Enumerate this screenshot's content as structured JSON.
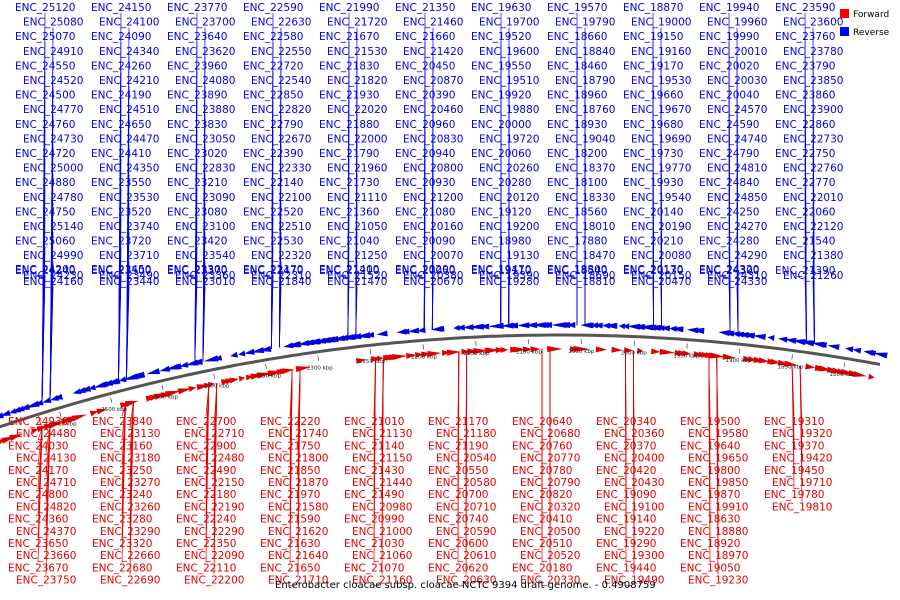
{
  "caption": "Enterobacter cloacae subsp. cloacae NCTC 9394 draft genome. - 0.4908759",
  "legend": {
    "forward": {
      "label": "Forward",
      "color": "#ff0000"
    },
    "reverse": {
      "label": "Reverse",
      "color": "#0000ff"
    }
  },
  "colors": {
    "forward": "#e00000",
    "reverse": "#0000e0",
    "backbone": "#555555"
  },
  "ticks": [
    "1800 kbp",
    "1850 kbp",
    "1900 kbp",
    "1950 kbp",
    "2000 kbp",
    "2050 kbp",
    "2100 kbp",
    "2150 kbp",
    "2200 kbp",
    "2250 kbp",
    "2300 kbp",
    "2350 kbp",
    "2400 kbp",
    "2450 kbp",
    "2500 kbp",
    "2550 kbp"
  ],
  "reverse_labels": [
    "ENC_25120",
    "ENC_25080",
    "ENC_25070",
    "ENC_24910",
    "ENC_24550",
    "ENC_24520",
    "ENC_24500",
    "ENC_24770",
    "ENC_24760",
    "ENC_24730",
    "ENC_24720",
    "ENC_25000",
    "ENC_24880",
    "ENC_24780",
    "ENC_24750",
    "ENC_25140",
    "ENC_25060",
    "ENC_24990",
    "ENC_24240",
    "ENC_24230",
    "ENC_24200",
    "ENC_24160",
    "ENC_24150",
    "ENC_24100",
    "ENC_24090",
    "ENC_24340",
    "ENC_24260",
    "ENC_24210",
    "ENC_24190",
    "ENC_24510",
    "ENC_24650",
    "ENC_24470",
    "ENC_24410",
    "ENC_24350",
    "ENC_23550",
    "ENC_23530",
    "ENC_23520",
    "ENC_23740",
    "ENC_23720",
    "ENC_23710",
    "ENC_23500",
    "ENC_23490",
    "ENC_23450",
    "ENC_23440",
    "ENC_23770",
    "ENC_23700",
    "ENC_23640",
    "ENC_23620",
    "ENC_23960",
    "ENC_24080",
    "ENC_23890",
    "ENC_23880",
    "ENC_23830",
    "ENC_23050",
    "ENC_23020",
    "ENC_22830",
    "ENC_23210",
    "ENC_23090",
    "ENC_23080",
    "ENC_23100",
    "ENC_23420",
    "ENC_23540",
    "ENC_23370",
    "ENC_23360",
    "ENC_23300",
    "ENC_23010",
    "ENC_22590",
    "ENC_22630",
    "ENC_22580",
    "ENC_22550",
    "ENC_22720",
    "ENC_22540",
    "ENC_22850",
    "ENC_22820",
    "ENC_22790",
    "ENC_22670",
    "ENC_22390",
    "ENC_22330",
    "ENC_22140",
    "ENC_22100",
    "ENC_22520",
    "ENC_22510",
    "ENC_22530",
    "ENC_22320",
    "ENC_22470",
    "ENC_22310",
    "ENC_22170",
    "ENC_21840",
    "ENC_21990",
    "ENC_21720",
    "ENC_21670",
    "ENC_21530",
    "ENC_21830",
    "ENC_21820",
    "ENC_21930",
    "ENC_22020",
    "ENC_21880",
    "ENC_22000",
    "ENC_21790",
    "ENC_21960",
    "ENC_21730",
    "ENC_21110",
    "ENC_21360",
    "ENC_21050",
    "ENC_21040",
    "ENC_21250",
    "ENC_21210",
    "ENC_21520",
    "ENC_21400",
    "ENC_21470",
    "ENC_21350",
    "ENC_21460",
    "ENC_21660",
    "ENC_21420",
    "ENC_20450",
    "ENC_20870",
    "ENC_20390",
    "ENC_20460",
    "ENC_20960",
    "ENC_20830",
    "ENC_20940",
    "ENC_20800",
    "ENC_20930",
    "ENC_21200",
    "ENC_21080",
    "ENC_20160",
    "ENC_20090",
    "ENC_20070",
    "ENC_20050",
    "ENC_20380",
    "ENC_20200",
    "ENC_20670",
    "ENC_19630",
    "ENC_19700",
    "ENC_19520",
    "ENC_19600",
    "ENC_19550",
    "ENC_19510",
    "ENC_19920",
    "ENC_19880",
    "ENC_20000",
    "ENC_19720",
    "ENC_20060",
    "ENC_20260",
    "ENC_20280",
    "ENC_20120",
    "ENC_19120",
    "ENC_19200",
    "ENC_18980",
    "ENC_19130",
    "ENC_19110",
    "ENC_19390",
    "ENC_19470",
    "ENC_19280",
    "ENC_19570",
    "ENC_19790",
    "ENC_18660",
    "ENC_18840",
    "ENC_18460",
    "ENC_18790",
    "ENC_18960",
    "ENC_18760",
    "ENC_18930",
    "ENC_19040",
    "ENC_18200",
    "ENC_18370",
    "ENC_18100",
    "ENC_18330",
    "ENC_18560",
    "ENC_18010",
    "ENC_17880",
    "ENC_18470",
    "ENC_18540",
    "ENC_18690",
    "ENC_18800",
    "ENC_18810",
    "ENC_18870",
    "ENC_19000",
    "ENC_19150",
    "ENC_19160",
    "ENC_19170",
    "ENC_19530",
    "ENC_19660",
    "ENC_19670",
    "ENC_19680",
    "ENC_19690",
    "ENC_19730",
    "ENC_19770",
    "ENC_19930",
    "ENC_19540",
    "ENC_20140",
    "ENC_20190",
    "ENC_20210",
    "ENC_20080",
    "ENC_20130",
    "ENC_20150",
    "ENC_20170",
    "ENC_20470",
    "ENC_19940",
    "ENC_19960",
    "ENC_19990",
    "ENC_20010",
    "ENC_20020",
    "ENC_20030",
    "ENC_20040",
    "ENC_24570",
    "ENC_24590",
    "ENC_24740",
    "ENC_24790",
    "ENC_24810",
    "ENC_24840",
    "ENC_24850",
    "ENC_24250",
    "ENC_24270",
    "ENC_24280",
    "ENC_24290",
    "ENC_24300",
    "ENC_24310",
    "ENC_24320",
    "ENC_24330",
    "ENC_23590",
    "ENC_23600",
    "ENC_23760",
    "ENC_23780",
    "ENC_23790",
    "ENC_23850",
    "ENC_23860",
    "ENC_23900",
    "ENC_22860",
    "ENC_22730",
    "ENC_22750",
    "ENC_22760",
    "ENC_22770",
    "ENC_22010",
    "ENC_22060",
    "ENC_22120",
    "ENC_21540",
    "ENC_21380",
    "ENC_21390",
    "ENC_21260"
  ],
  "forward_labels": [
    "ENC_24930",
    "ENC_24480",
    "ENC_24030",
    "ENC_24130",
    "ENC_24170",
    "ENC_24710",
    "ENC_24800",
    "ENC_24820",
    "ENC_24360",
    "ENC_24370",
    "ENC_23650",
    "ENC_23660",
    "ENC_23670",
    "ENC_23750",
    "ENC_23840",
    "ENC_23130",
    "ENC_23160",
    "ENC_23180",
    "ENC_23250",
    "ENC_23270",
    "ENC_23240",
    "ENC_23260",
    "ENC_23280",
    "ENC_23290",
    "ENC_23320",
    "ENC_22660",
    "ENC_22680",
    "ENC_22690",
    "ENC_22700",
    "ENC_22710",
    "ENC_22900",
    "ENC_22480",
    "ENC_22490",
    "ENC_22150",
    "ENC_22180",
    "ENC_22190",
    "ENC_22240",
    "ENC_22290",
    "ENC_22350",
    "ENC_22090",
    "ENC_22110",
    "ENC_22200",
    "ENC_22220",
    "ENC_21740",
    "ENC_21750",
    "ENC_21800",
    "ENC_21850",
    "ENC_21870",
    "ENC_21970",
    "ENC_21580",
    "ENC_21590",
    "ENC_21620",
    "ENC_21630",
    "ENC_21640",
    "ENC_21650",
    "ENC_21710",
    "ENC_21010",
    "ENC_21130",
    "ENC_21140",
    "ENC_21150",
    "ENC_21430",
    "ENC_21440",
    "ENC_21490",
    "ENC_20980",
    "ENC_20990",
    "ENC_21000",
    "ENC_21030",
    "ENC_21060",
    "ENC_21070",
    "ENC_21160",
    "ENC_21170",
    "ENC_21180",
    "ENC_21190",
    "ENC_20540",
    "ENC_20550",
    "ENC_20580",
    "ENC_20700",
    "ENC_20710",
    "ENC_20740",
    "ENC_20590",
    "ENC_20600",
    "ENC_20610",
    "ENC_20620",
    "ENC_20630",
    "ENC_20640",
    "ENC_20680",
    "ENC_20760",
    "ENC_20770",
    "ENC_20780",
    "ENC_20790",
    "ENC_20820",
    "ENC_20320",
    "ENC_20410",
    "ENC_20500",
    "ENC_20510",
    "ENC_20520",
    "ENC_20180",
    "ENC_20330",
    "ENC_20340",
    "ENC_20360",
    "ENC_20370",
    "ENC_20400",
    "ENC_20420",
    "ENC_20430",
    "ENC_19090",
    "ENC_19100",
    "ENC_19140",
    "ENC_19220",
    "ENC_19290",
    "ENC_19300",
    "ENC_19440",
    "ENC_19490",
    "ENC_19500",
    "ENC_19580",
    "ENC_19640",
    "ENC_19650",
    "ENC_19800",
    "ENC_19850",
    "ENC_19870",
    "ENC_19910",
    "ENC_18630",
    "ENC_18880",
    "ENC_18920",
    "ENC_18970",
    "ENC_19050",
    "ENC_19230",
    "ENC_19310",
    "ENC_19320",
    "ENC_19370",
    "ENC_19420",
    "ENC_19450",
    "ENC_19710",
    "ENC_19780",
    "ENC_19810"
  ]
}
